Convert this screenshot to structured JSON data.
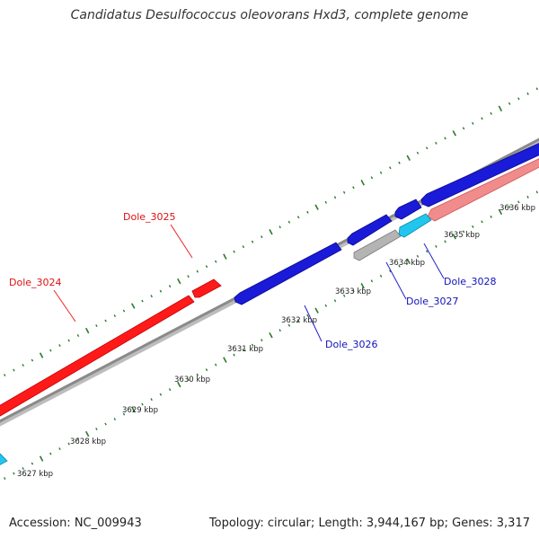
{
  "title": "Candidatus Desulfococcus oleovorans Hxd3, complete genome",
  "footer": {
    "accession": "Accession: NC_009943",
    "summary": "Topology: circular; Length: 3,944,167 bp; Genes: 3,317"
  },
  "colors": {
    "forward_gene": "#ff1a1a",
    "forward_gene_pale": "#f08c8c",
    "reverse_gene": "#1a1ad9",
    "cyan_gene": "#21c6ee",
    "grey_gene": "#b4b4b4",
    "backbone": "#8a8a8a",
    "tick": "#2a7a2a",
    "label_red": "#dd1111",
    "label_blue": "#1111bb"
  },
  "scale_labels": [
    "3627 kbp",
    "3628 kbp",
    "3629 kbp",
    "3630 kbp",
    "3631 kbp",
    "3632 kbp",
    "3633 kbp",
    "3634 kbp",
    "3635 kbp",
    "3636 kbp"
  ],
  "gene_labels": [
    {
      "text": "Dole_3024",
      "color": "red"
    },
    {
      "text": "Dole_3025",
      "color": "red"
    },
    {
      "text": "Dole_3026",
      "color": "blue"
    },
    {
      "text": "Dole_3027",
      "color": "blue"
    },
    {
      "text": "Dole_3028",
      "color": "blue"
    }
  ]
}
